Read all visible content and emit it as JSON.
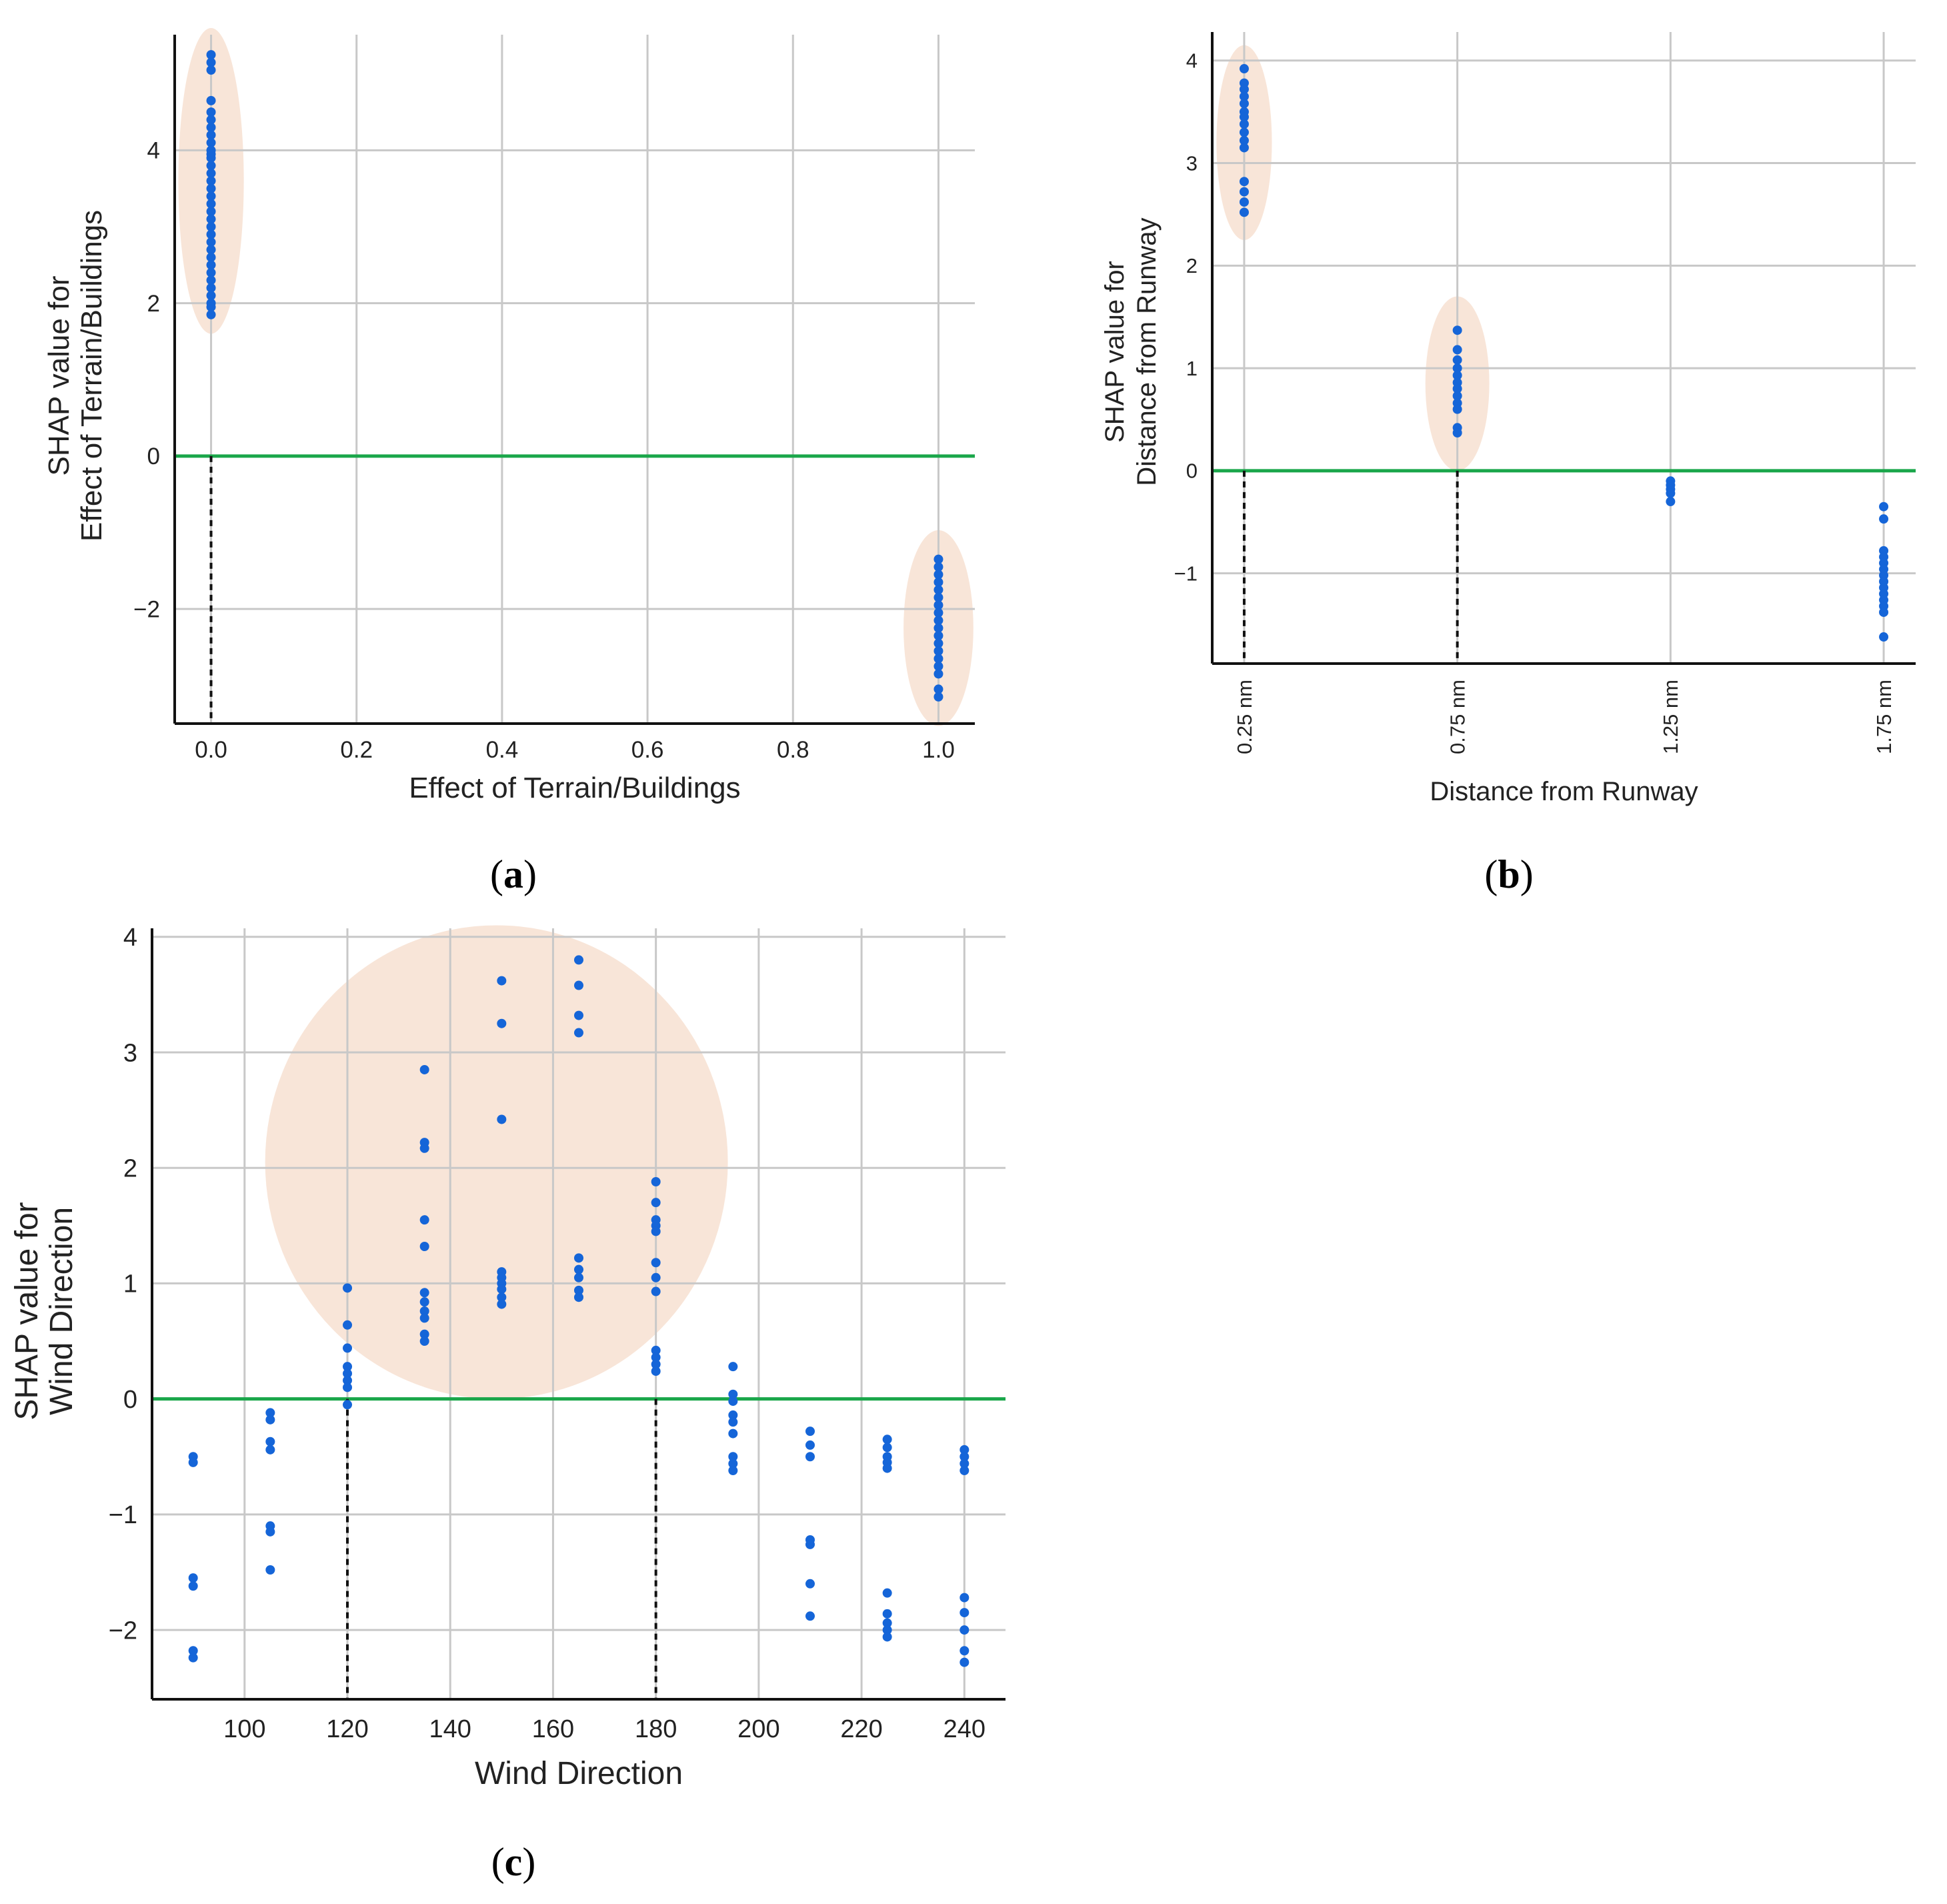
{
  "colors": {
    "point": "#1565d8",
    "zero_line": "#1aa64a",
    "highlight": "#f5dccb",
    "grid": "#c8c8c8",
    "axis": "#111111",
    "guide": "#111111"
  },
  "chart_data": [
    {
      "type": "scatter",
      "panel_label": "a",
      "xlabel": "Effect of Terrain/Buildings",
      "ylabel_line1": "SHAP value for",
      "ylabel_line2": "Effect of Terrain/Buildings",
      "xlim": [
        -0.05,
        1.05
      ],
      "ylim": [
        -3.5,
        5.6
      ],
      "xticks": [
        0.0,
        0.2,
        0.4,
        0.6,
        0.8,
        1.0
      ],
      "xtick_labels": [
        "0.0",
        "0.2",
        "0.4",
        "0.6",
        "0.8",
        "1.0"
      ],
      "yticks": [
        -2,
        0,
        2,
        4
      ],
      "ytick_labels": [
        "−2",
        "0",
        "2",
        "4"
      ],
      "zero_line": 0,
      "guides": [
        0.0
      ],
      "highlights": [
        {
          "x": 0.0,
          "y": 3.6,
          "rx": 0.045,
          "ry": 2.0
        },
        {
          "x": 1.0,
          "y": -2.25,
          "rx": 0.048,
          "ry": 1.28
        }
      ],
      "series": [
        {
          "x": 0.0,
          "y": [
            5.25,
            5.15,
            5.05,
            4.65,
            4.5,
            4.4,
            4.3,
            4.2,
            4.1,
            4.0,
            3.95,
            3.9,
            3.8,
            3.7,
            3.6,
            3.5,
            3.4,
            3.3,
            3.2,
            3.1,
            3.0,
            2.9,
            2.8,
            2.7,
            2.6,
            2.5,
            2.4,
            2.3,
            2.2,
            2.1,
            2.0,
            1.95,
            1.85
          ]
        },
        {
          "x": 1.0,
          "y": [
            -1.35,
            -1.45,
            -1.55,
            -1.65,
            -1.75,
            -1.85,
            -1.95,
            -2.05,
            -2.15,
            -2.25,
            -2.35,
            -2.45,
            -2.55,
            -2.65,
            -2.75,
            -2.85,
            -3.05,
            -3.15
          ]
        }
      ]
    },
    {
      "type": "scatter",
      "panel_label": "b",
      "xlabel": "Distance from Runway",
      "ylabel_line1": "SHAP value for",
      "ylabel_line2": "Distance from Runway",
      "xlim": [
        -0.15,
        3.15
      ],
      "ylim": [
        -1.88,
        4.2
      ],
      "xticks": [
        0,
        1,
        2,
        3
      ],
      "xtick_labels": [
        "0.25 nm",
        "0.75 nm",
        "1.25 nm",
        "1.75 nm"
      ],
      "yticks": [
        -1,
        0,
        1,
        2,
        3,
        4
      ],
      "ytick_labels": [
        "−1",
        "0",
        "1",
        "2",
        "3",
        "4"
      ],
      "zero_line": 0,
      "guides": [
        0,
        1
      ],
      "highlights": [
        {
          "x": 0,
          "y": 3.2,
          "rx": 0.13,
          "ry": 0.95
        },
        {
          "x": 1,
          "y": 0.85,
          "rx": 0.15,
          "ry": 0.85
        }
      ],
      "series": [
        {
          "x": 0,
          "y": [
            3.92,
            3.78,
            3.72,
            3.65,
            3.58,
            3.5,
            3.45,
            3.38,
            3.3,
            3.22,
            3.15,
            2.82,
            2.72,
            2.62,
            2.52
          ]
        },
        {
          "x": 1,
          "y": [
            1.37,
            1.18,
            1.08,
            1.0,
            0.93,
            0.86,
            0.8,
            0.73,
            0.66,
            0.6,
            0.42,
            0.37
          ]
        },
        {
          "x": 2,
          "y": [
            -0.1,
            -0.14,
            -0.18,
            -0.22,
            -0.3
          ]
        },
        {
          "x": 3,
          "y": [
            -0.35,
            -0.47,
            -0.78,
            -0.84,
            -0.9,
            -0.96,
            -1.02,
            -1.08,
            -1.14,
            -1.2,
            -1.26,
            -1.32,
            -1.38,
            -1.62
          ]
        }
      ]
    },
    {
      "type": "scatter",
      "panel_label": "c",
      "xlabel": "Wind Direction",
      "ylabel_line1": "SHAP value for",
      "ylabel_line2": "Wind Direction",
      "xlim": [
        82,
        248
      ],
      "ylim": [
        -2.6,
        4.12
      ],
      "xticks": [
        100,
        120,
        140,
        160,
        180,
        200,
        220,
        240
      ],
      "xtick_labels": [
        "100",
        "120",
        "140",
        "160",
        "180",
        "200",
        "220",
        "240"
      ],
      "yticks": [
        -2,
        -1,
        0,
        1,
        2,
        3,
        4
      ],
      "ytick_labels": [
        "−2",
        "−1",
        "0",
        "1",
        "2",
        "3",
        "4"
      ],
      "zero_line": 0,
      "guides": [
        120,
        180
      ],
      "highlights": [
        {
          "x": 149,
          "y": 2.05,
          "rx": 45,
          "ry": 2.05
        }
      ],
      "series": [
        {
          "x": 90,
          "y": [
            -0.5,
            -0.55,
            -1.55,
            -1.62,
            -2.18,
            -2.24
          ]
        },
        {
          "x": 105,
          "y": [
            -0.12,
            -0.18,
            -0.37,
            -0.44,
            -1.1,
            -1.15,
            -1.48
          ]
        },
        {
          "x": 120,
          "y": [
            0.96,
            0.64,
            0.44,
            0.28,
            0.22,
            0.16,
            0.1,
            -0.05
          ]
        },
        {
          "x": 135,
          "y": [
            2.85,
            2.22,
            2.17,
            1.55,
            1.32,
            0.92,
            0.84,
            0.76,
            0.7,
            0.56,
            0.5
          ]
        },
        {
          "x": 150,
          "y": [
            3.62,
            3.25,
            2.42,
            1.1,
            1.05,
            1.0,
            0.95,
            0.88,
            0.82
          ]
        },
        {
          "x": 165,
          "y": [
            3.8,
            3.58,
            3.32,
            3.17,
            1.22,
            1.12,
            1.05,
            0.94,
            0.88
          ]
        },
        {
          "x": 180,
          "y": [
            1.88,
            1.7,
            1.55,
            1.5,
            1.45,
            1.18,
            1.05,
            0.93,
            0.42,
            0.36,
            0.3,
            0.24
          ]
        },
        {
          "x": 195,
          "y": [
            0.28,
            0.04,
            -0.02,
            -0.14,
            -0.2,
            -0.3,
            -0.5,
            -0.56,
            -0.62
          ]
        },
        {
          "x": 210,
          "y": [
            -0.28,
            -0.4,
            -0.5,
            -1.22,
            -1.26,
            -1.6,
            -1.88
          ]
        },
        {
          "x": 225,
          "y": [
            -0.35,
            -0.42,
            -0.5,
            -0.55,
            -0.6,
            -1.68,
            -1.86,
            -1.94,
            -2.0,
            -2.06
          ]
        },
        {
          "x": 240,
          "y": [
            -0.44,
            -0.5,
            -0.56,
            -0.62,
            -1.72,
            -1.85,
            -2.0,
            -2.18,
            -2.28
          ]
        }
      ]
    }
  ]
}
